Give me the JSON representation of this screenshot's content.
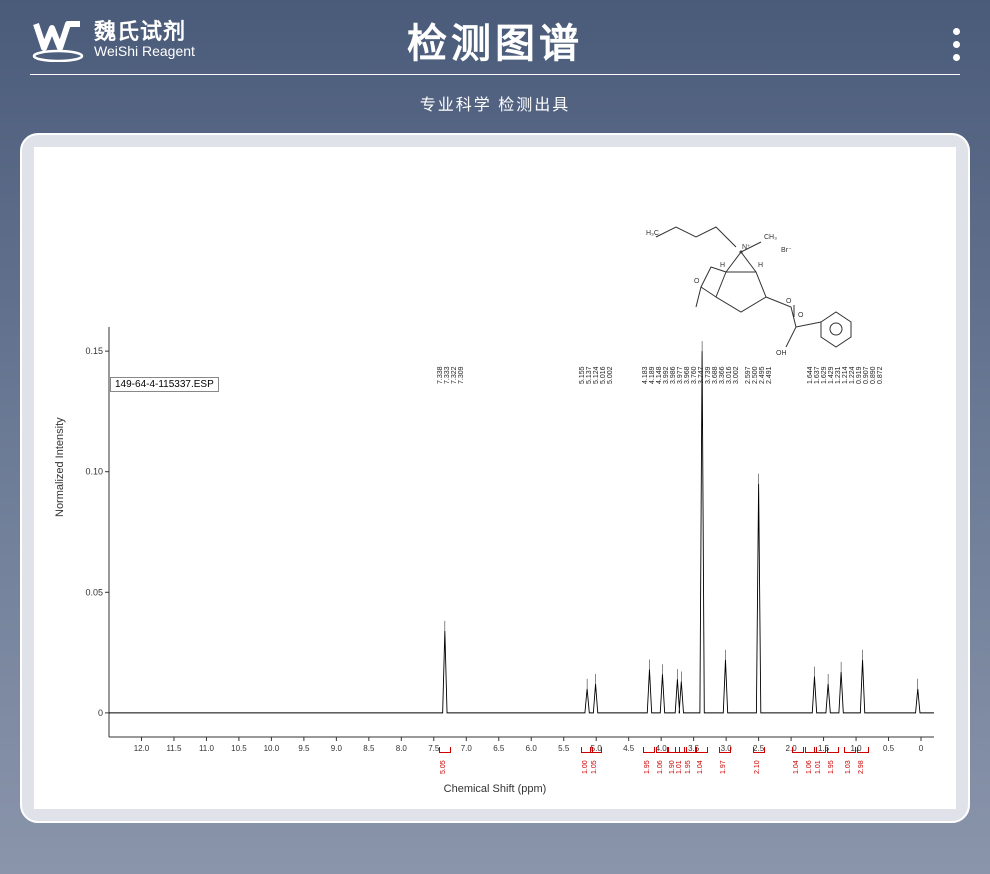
{
  "header": {
    "logo_cn": "魏氏试剂",
    "logo_en": "WeiShi Reagent",
    "title": "检测图谱",
    "subtitle": "专业科学 检测出具"
  },
  "chart": {
    "type": "line",
    "sample_label": "149-64-4-115337.ESP",
    "y_axis_label": "Normalized Intensity",
    "x_axis_label": "Chemical Shift (ppm)",
    "background_color": "#ffffff",
    "line_color": "#000000",
    "integral_color": "#cc0000",
    "axis_color": "#333333",
    "x_ticks": [
      "12.0",
      "11.5",
      "11.0",
      "10.5",
      "10.0",
      "9.5",
      "9.0",
      "8.5",
      "8.0",
      "7.5",
      "7.0",
      "6.5",
      "6.0",
      "5.5",
      "5.0",
      "4.5",
      "4.0",
      "3.5",
      "3.0",
      "2.5",
      "2.0",
      "1.5",
      "1.0",
      "0.5",
      "0"
    ],
    "xlim": [
      12.5,
      -0.2
    ],
    "y_ticks": [
      "0",
      "0.05",
      "0.10",
      "0.15"
    ],
    "ylim": [
      -0.01,
      0.16
    ],
    "peak_ppm_labels": [
      "7.338",
      "7.333",
      "7.322",
      "7.309",
      "5.155",
      "5.137",
      "5.124",
      "5.016",
      "5.002",
      "4.183",
      "4.189",
      "4.148",
      "3.992",
      "3.986",
      "3.977",
      "3.968",
      "3.760",
      "3.747",
      "3.739",
      "3.688",
      "3.366",
      "3.016",
      "3.002",
      "2.597",
      "2.500",
      "2.495",
      "2.491",
      "1.644",
      "1.637",
      "1.629",
      "1.429",
      "1.231",
      "1.214",
      "1.224",
      "0.919",
      "0.907",
      "0.890",
      "0.872"
    ],
    "peaks": [
      {
        "ppm": 7.33,
        "h": 0.034
      },
      {
        "ppm": 5.14,
        "h": 0.01
      },
      {
        "ppm": 5.01,
        "h": 0.012
      },
      {
        "ppm": 4.18,
        "h": 0.018
      },
      {
        "ppm": 3.98,
        "h": 0.016
      },
      {
        "ppm": 3.75,
        "h": 0.014
      },
      {
        "ppm": 3.69,
        "h": 0.013
      },
      {
        "ppm": 3.37,
        "h": 0.15
      },
      {
        "ppm": 3.01,
        "h": 0.022
      },
      {
        "ppm": 2.5,
        "h": 0.095
      },
      {
        "ppm": 1.64,
        "h": 0.015
      },
      {
        "ppm": 1.43,
        "h": 0.012
      },
      {
        "ppm": 1.23,
        "h": 0.017
      },
      {
        "ppm": 0.9,
        "h": 0.022
      },
      {
        "ppm": 0.05,
        "h": 0.01
      }
    ],
    "integrals": [
      {
        "ppm": 7.33,
        "val": "5.05"
      },
      {
        "ppm": 5.14,
        "val": "1.00"
      },
      {
        "ppm": 5.01,
        "val": "1.05"
      },
      {
        "ppm": 4.18,
        "val": "1.95"
      },
      {
        "ppm": 3.98,
        "val": "1.06"
      },
      {
        "ppm": 3.8,
        "val": "1.90"
      },
      {
        "ppm": 3.69,
        "val": "1.01"
      },
      {
        "ppm": 3.55,
        "val": "1.95"
      },
      {
        "ppm": 3.37,
        "val": "1.04"
      },
      {
        "ppm": 3.01,
        "val": "1.97"
      },
      {
        "ppm": 2.5,
        "val": "2.10"
      },
      {
        "ppm": 1.9,
        "val": "1.04"
      },
      {
        "ppm": 1.7,
        "val": "1.06"
      },
      {
        "ppm": 1.55,
        "val": "1.01"
      },
      {
        "ppm": 1.35,
        "val": "1.95"
      },
      {
        "ppm": 1.1,
        "val": "1.03"
      },
      {
        "ppm": 0.9,
        "val": "2.98"
      }
    ],
    "molecule_labels": [
      "H₃C",
      "N⁺",
      "CH₃",
      "Br⁻",
      "H",
      "H",
      "O",
      "O",
      "O",
      "OH"
    ]
  }
}
